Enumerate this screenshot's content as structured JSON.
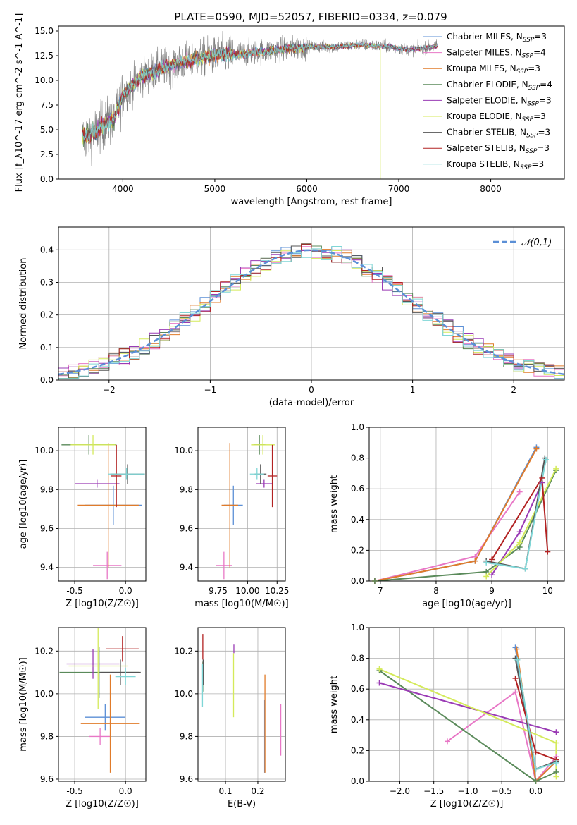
{
  "figure_title": "PLATE=0590, MJD=52057, FIBERID=0334, z=0.079",
  "colors": {
    "Chabrier MILES": "#5b8fd6",
    "Salpeter MILES": "#e877c6",
    "Kroupa MILES": "#e07b2a",
    "Chabrier ELODIE": "#5a8a5a",
    "Salpeter ELODIE": "#9a3bb5",
    "Kroupa ELODIE": "#d4ea5a",
    "Chabrier STELIB": "#555555",
    "Salpeter STELIB": "#b22222",
    "Kroupa STELIB": "#7fd6d6",
    "data": "#808080",
    "gaussian": "#5b8fd6"
  },
  "legend_spectrum": {
    "entries": [
      {
        "model": "Chabrier MILES",
        "nssp": "3"
      },
      {
        "model": "Salpeter MILES",
        "nssp": "4"
      },
      {
        "model": "Kroupa MILES",
        "nssp": "3"
      },
      {
        "model": "Chabrier ELODIE",
        "nssp": "4"
      },
      {
        "model": "Salpeter ELODIE",
        "nssp": "3"
      },
      {
        "model": "Kroupa ELODIE",
        "nssp": "3"
      },
      {
        "model": "Chabrier STELIB",
        "nssp": "3"
      },
      {
        "model": "Salpeter STELIB",
        "nssp": "3"
      },
      {
        "model": "Kroupa STELIB",
        "nssp": "3"
      }
    ]
  },
  "chart_data": [
    {
      "id": "spectrum",
      "type": "line",
      "xlabel": "wavelength [Angstrom, rest frame]",
      "ylabel": "Flux [f_λ10^-17 erg cm^-2 s^-1 A^-1]",
      "xlim": [
        3300,
        8800
      ],
      "ylim": [
        0,
        15.5
      ],
      "xticks": [
        4000,
        5000,
        6000,
        7000,
        8000
      ],
      "yticks": [
        0.0,
        2.5,
        5.0,
        7.5,
        10.0,
        12.5,
        15.0
      ],
      "grid": false,
      "legend": "right",
      "data_range": [
        3560,
        7420
      ],
      "continuum": {
        "x": [
          3560,
          3700,
          3800,
          3900,
          4000,
          4200,
          4500,
          4800,
          5000,
          5200,
          5500,
          5800,
          6000,
          6300,
          6600,
          6900,
          7100,
          7300,
          7420
        ],
        "y": [
          4.2,
          4.8,
          5.6,
          6.0,
          8.5,
          10.4,
          11.5,
          12.2,
          12.6,
          12.6,
          12.9,
          13.2,
          13.4,
          13.4,
          13.6,
          13.4,
          13.1,
          13.3,
          13.5
        ]
      },
      "model_cutoffs": {
        "Kroupa ELODIE": 6800,
        "Salpeter STELIB": 7420
      }
    },
    {
      "id": "residuals",
      "type": "line",
      "xlabel": "(data-model)/error",
      "ylabel": "Normed distribution",
      "xlim": [
        -2.5,
        2.5
      ],
      "ylim": [
        0,
        0.47
      ],
      "xticks": [
        -2,
        -1,
        0,
        1,
        2
      ],
      "yticks": [
        0.0,
        0.1,
        0.2,
        0.3,
        0.4
      ],
      "grid": true,
      "legend": "top-right",
      "legend_label": "N(0,1)",
      "bin_width": 0.1
    },
    {
      "id": "age_vs_Z",
      "type": "scatter",
      "xlabel": "Z [log10(Z/Z☉)]",
      "ylabel": "age [log10(age/yr)]",
      "xlim": [
        -0.66,
        0.2
      ],
      "ylim": [
        9.33,
        10.12
      ],
      "xticks": [
        -0.5,
        0.0
      ],
      "yticks": [
        9.4,
        9.6,
        9.8,
        10.0
      ],
      "grid": true,
      "points": [
        {
          "model": "Chabrier MILES",
          "x": -0.12,
          "y": 9.72,
          "xerr": 0.28,
          "yerr": 0.1
        },
        {
          "model": "Salpeter MILES",
          "x": -0.18,
          "y": 9.41,
          "xerr": 0.14,
          "yerr": 0.07
        },
        {
          "model": "Kroupa MILES",
          "x": -0.17,
          "y": 9.72,
          "xerr": 0.3,
          "yerr": 0.32
        },
        {
          "model": "Chabrier ELODIE",
          "x": -0.36,
          "y": 10.03,
          "xerr": 0.27,
          "yerr": 0.05
        },
        {
          "model": "Salpeter ELODIE",
          "x": -0.28,
          "y": 9.83,
          "xerr": 0.22,
          "yerr": 0.02
        },
        {
          "model": "Kroupa ELODIE",
          "x": -0.32,
          "y": 10.03,
          "xerr": 0.22,
          "yerr": 0.05
        },
        {
          "model": "Chabrier STELIB",
          "x": 0.02,
          "y": 9.88,
          "xerr": 0.17,
          "yerr": 0.05
        },
        {
          "model": "Salpeter STELIB",
          "x": -0.09,
          "y": 9.87,
          "xerr": 0.05,
          "yerr": 0.16
        },
        {
          "model": "Kroupa STELIB",
          "x": 0.01,
          "y": 9.88,
          "xerr": 0.18,
          "yerr": 0.03
        }
      ]
    },
    {
      "id": "age_vs_mass",
      "type": "scatter",
      "xlabel": "mass [log10(M/M☉)]",
      "ylabel": "",
      "xlim": [
        9.58,
        10.32
      ],
      "ylim": [
        9.33,
        10.12
      ],
      "xticks": [
        9.75,
        10.0,
        10.25
      ],
      "yticks": [
        9.4,
        9.6,
        9.8,
        10.0
      ],
      "grid": true,
      "points": [
        {
          "model": "Chabrier MILES",
          "x": 9.88,
          "y": 9.72,
          "xerr": 0.08,
          "yerr": 0.1
        },
        {
          "model": "Salpeter MILES",
          "x": 9.8,
          "y": 9.41,
          "xerr": 0.07,
          "yerr": 0.07
        },
        {
          "model": "Kroupa MILES",
          "x": 9.85,
          "y": 9.72,
          "xerr": 0.07,
          "yerr": 0.32
        },
        {
          "model": "Chabrier ELODIE",
          "x": 10.1,
          "y": 10.03,
          "xerr": 0.05,
          "yerr": 0.05
        },
        {
          "model": "Salpeter ELODIE",
          "x": 10.14,
          "y": 9.83,
          "xerr": 0.07,
          "yerr": 0.02
        },
        {
          "model": "Kroupa ELODIE",
          "x": 10.13,
          "y": 10.03,
          "xerr": 0.1,
          "yerr": 0.05
        },
        {
          "model": "Chabrier STELIB",
          "x": 10.11,
          "y": 9.88,
          "xerr": 0.05,
          "yerr": 0.05
        },
        {
          "model": "Salpeter STELIB",
          "x": 10.21,
          "y": 9.87,
          "xerr": 0.04,
          "yerr": 0.16
        },
        {
          "model": "Kroupa STELIB",
          "x": 10.08,
          "y": 9.88,
          "xerr": 0.06,
          "yerr": 0.03
        }
      ]
    },
    {
      "id": "weight_vs_age",
      "type": "line",
      "xlabel": "age [log10(age/yr)]",
      "ylabel": "mass weight",
      "xlim": [
        6.8,
        10.3
      ],
      "ylim": [
        0,
        1.0
      ],
      "xticks": [
        7,
        8,
        9,
        10
      ],
      "yticks": [
        0.0,
        0.2,
        0.4,
        0.6,
        0.8,
        1.0
      ],
      "grid": true,
      "series": [
        {
          "model": "Chabrier MILES",
          "x": [
            6.9,
            8.7,
            9.8
          ],
          "y": [
            0.0,
            0.13,
            0.87
          ]
        },
        {
          "model": "Salpeter MILES",
          "x": [
            6.9,
            8.7,
            9.5
          ],
          "y": [
            0.0,
            0.16,
            0.58
          ]
        },
        {
          "model": "Kroupa MILES",
          "x": [
            6.9,
            8.7,
            9.8
          ],
          "y": [
            0.0,
            0.13,
            0.86
          ]
        },
        {
          "model": "Chabrier ELODIE",
          "x": [
            6.9,
            8.9,
            9.5,
            10.15
          ],
          "y": [
            0.0,
            0.06,
            0.22,
            0.72
          ]
        },
        {
          "model": "Salpeter ELODIE",
          "x": [
            9.0,
            9.5,
            9.9
          ],
          "y": [
            0.04,
            0.32,
            0.64
          ]
        },
        {
          "model": "Kroupa ELODIE",
          "x": [
            8.9,
            9.5,
            10.15
          ],
          "y": [
            0.03,
            0.25,
            0.73
          ]
        },
        {
          "model": "Chabrier STELIB",
          "x": [
            8.9,
            9.6,
            9.95
          ],
          "y": [
            0.13,
            0.08,
            0.8
          ]
        },
        {
          "model": "Salpeter STELIB",
          "x": [
            9.0,
            9.9,
            10.0
          ],
          "y": [
            0.14,
            0.67,
            0.19
          ]
        },
        {
          "model": "Kroupa STELIB",
          "x": [
            8.9,
            9.6,
            9.97
          ],
          "y": [
            0.12,
            0.08,
            0.79
          ]
        }
      ]
    },
    {
      "id": "mass_vs_Z",
      "type": "scatter",
      "xlabel": "Z [log10(Z/Z☉)]",
      "ylabel": "mass [log10(M/M☉)]",
      "xlim": [
        -0.66,
        0.2
      ],
      "ylim": [
        9.59,
        10.31
      ],
      "xticks": [
        -0.5,
        0.0
      ],
      "yticks": [
        9.6,
        9.8,
        10.0,
        10.2
      ],
      "grid": true,
      "points": [
        {
          "model": "Chabrier MILES",
          "x": -0.2,
          "y": 9.89,
          "xerr": 0.2,
          "yerr": 0.06
        },
        {
          "model": "Salpeter MILES",
          "x": -0.25,
          "y": 9.8,
          "xerr": 0.11,
          "yerr": 0.04
        },
        {
          "model": "Kroupa MILES",
          "x": -0.15,
          "y": 9.86,
          "xerr": 0.29,
          "yerr": 0.23
        },
        {
          "model": "Chabrier ELODIE",
          "x": -0.26,
          "y": 10.1,
          "xerr": 0.39,
          "yerr": 0.12
        },
        {
          "model": "Salpeter ELODIE",
          "x": -0.32,
          "y": 10.14,
          "xerr": 0.26,
          "yerr": 0.07
        },
        {
          "model": "Kroupa ELODIE",
          "x": -0.27,
          "y": 10.13,
          "xerr": 0.29,
          "yerr": 0.2
        },
        {
          "model": "Chabrier STELIB",
          "x": -0.05,
          "y": 10.1,
          "xerr": 0.2,
          "yerr": 0.06
        },
        {
          "model": "Salpeter STELIB",
          "x": -0.03,
          "y": 10.21,
          "xerr": 0.16,
          "yerr": 0.06
        },
        {
          "model": "Kroupa STELIB",
          "x": 0.0,
          "y": 10.08,
          "xerr": 0.1,
          "yerr": 0.04
        }
      ]
    },
    {
      "id": "mass_vs_ebv",
      "type": "scatter",
      "xlabel": "E(B-V)",
      "ylabel": "",
      "xlim": [
        0.015,
        0.285
      ],
      "ylim": [
        9.59,
        10.31
      ],
      "xticks": [
        0.1,
        0.2
      ],
      "yticks": [
        9.6,
        9.8,
        10.0,
        10.2
      ],
      "grid": true,
      "points": [
        {
          "model": "Chabrier MILES",
          "x": 0.221,
          "y": 9.8,
          "xerr": 0.0,
          "yerr": 0.17
        },
        {
          "model": "Salpeter MILES",
          "x": 0.271,
          "y": 9.83,
          "xerr": 0.0,
          "yerr": 0.12
        },
        {
          "model": "Kroupa MILES",
          "x": 0.222,
          "y": 9.86,
          "xerr": 0.0,
          "yerr": 0.23
        },
        {
          "model": "Chabrier ELODIE",
          "x": 0.03,
          "y": 10.08,
          "xerr": 0.0,
          "yerr": 0.07
        },
        {
          "model": "Salpeter ELODIE",
          "x": 0.126,
          "y": 10.21,
          "xerr": 0.0,
          "yerr": 0.02
        },
        {
          "model": "Kroupa ELODIE",
          "x": 0.125,
          "y": 10.04,
          "xerr": 0.0,
          "yerr": 0.15
        },
        {
          "model": "Chabrier STELIB",
          "x": 0.031,
          "y": 10.1,
          "xerr": 0.0,
          "yerr": 0.06
        },
        {
          "model": "Salpeter STELIB",
          "x": 0.03,
          "y": 10.22,
          "xerr": 0.0,
          "yerr": 0.06
        },
        {
          "model": "Kroupa STELIB",
          "x": 0.029,
          "y": 10.04,
          "xerr": 0.0,
          "yerr": 0.1
        }
      ]
    },
    {
      "id": "weight_vs_Z",
      "type": "line",
      "xlabel": "Z [log10(Z/Z☉)]",
      "ylabel": "mass weight",
      "xlim": [
        -2.45,
        0.42
      ],
      "ylim": [
        0,
        1.0
      ],
      "xticks": [
        -2.0,
        -1.5,
        -1.0,
        -0.5,
        0.0
      ],
      "yticks": [
        0.0,
        0.2,
        0.4,
        0.6,
        0.8,
        1.0
      ],
      "grid": true,
      "series": [
        {
          "model": "Chabrier MILES",
          "x": [
            -0.3,
            0.0,
            0.3
          ],
          "y": [
            0.87,
            0.0,
            0.13
          ]
        },
        {
          "model": "Salpeter MILES",
          "x": [
            -1.3,
            -0.3,
            0.0,
            0.3
          ],
          "y": [
            0.26,
            0.58,
            0.0,
            0.16
          ]
        },
        {
          "model": "Kroupa MILES",
          "x": [
            -0.28,
            0.0,
            0.3
          ],
          "y": [
            0.86,
            0.0,
            0.13
          ]
        },
        {
          "model": "Chabrier ELODIE",
          "x": [
            -2.3,
            0.0,
            0.3
          ],
          "y": [
            0.72,
            0.0,
            0.06
          ]
        },
        {
          "model": "Salpeter ELODIE",
          "x": [
            -2.3,
            0.3
          ],
          "y": [
            0.64,
            0.32
          ]
        },
        {
          "model": "Kroupa ELODIE",
          "x": [
            -2.3,
            0.3,
            0.3
          ],
          "y": [
            0.73,
            0.25,
            0.03
          ]
        },
        {
          "model": "Chabrier STELIB",
          "x": [
            -0.3,
            0.0,
            0.3
          ],
          "y": [
            0.8,
            0.08,
            0.13
          ]
        },
        {
          "model": "Salpeter STELIB",
          "x": [
            -0.3,
            0.0,
            0.3
          ],
          "y": [
            0.67,
            0.19,
            0.14
          ]
        },
        {
          "model": "Kroupa STELIB",
          "x": [
            -0.27,
            0.0,
            0.3
          ],
          "y": [
            0.79,
            0.08,
            0.12
          ]
        }
      ]
    }
  ]
}
